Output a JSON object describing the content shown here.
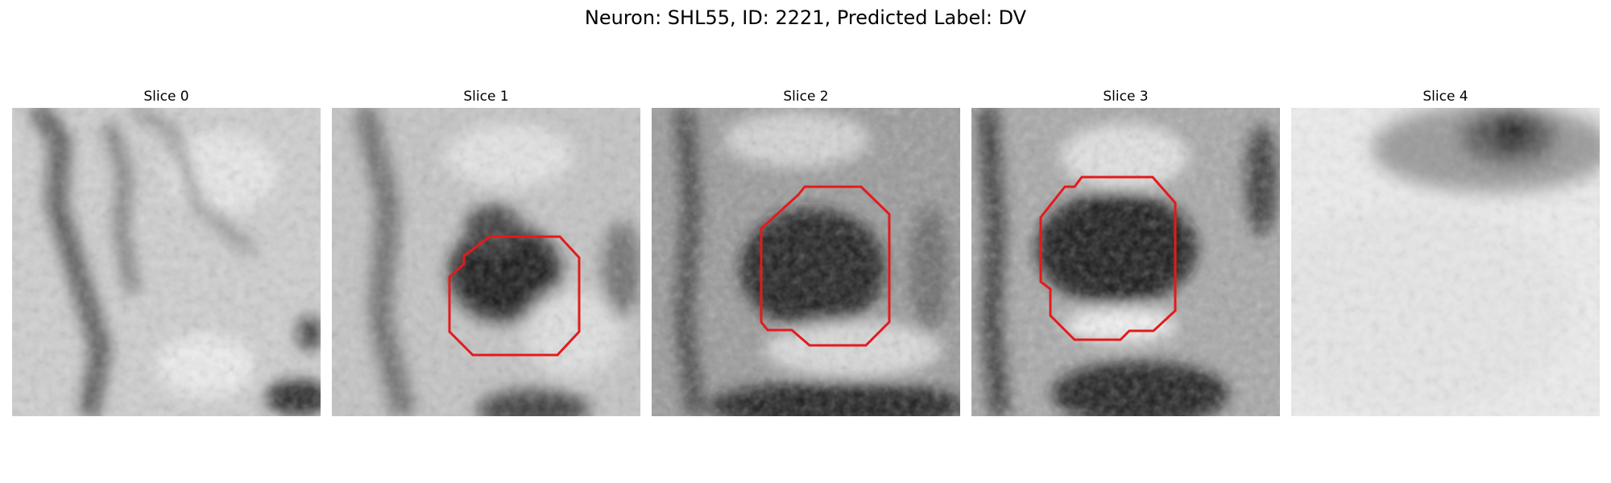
{
  "figure": {
    "title": "Neuron: SHL55, ID: 2221, Predicted Label: DV"
  },
  "overlay_color": "#e41a1c",
  "slices": [
    {
      "title": "Slice 0",
      "has_outline": false
    },
    {
      "title": "Slice 1",
      "has_outline": true
    },
    {
      "title": "Slice 2",
      "has_outline": true
    },
    {
      "title": "Slice 3",
      "has_outline": true
    },
    {
      "title": "Slice 4",
      "has_outline": false
    }
  ]
}
